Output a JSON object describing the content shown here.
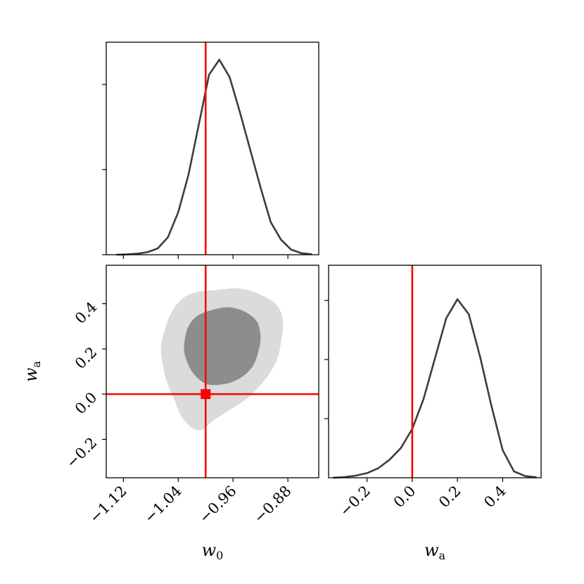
{
  "chart_data": [
    {
      "type": "line",
      "panel": "w0-marginal",
      "xlim": [
        -1.145,
        -0.835
      ],
      "x": [
        -1.13,
        -1.115,
        -1.1,
        -1.085,
        -1.07,
        -1.055,
        -1.04,
        -1.025,
        -1.01,
        -0.995,
        -0.98,
        -0.965,
        -0.95,
        -0.935,
        -0.92,
        -0.905,
        -0.89,
        -0.875,
        -0.86,
        -0.845
      ],
      "y": [
        0.0,
        0.001,
        0.004,
        0.01,
        0.025,
        0.07,
        0.17,
        0.32,
        0.52,
        0.72,
        0.78,
        0.71,
        0.57,
        0.42,
        0.27,
        0.13,
        0.06,
        0.02,
        0.006,
        0.002
      ],
      "ylim": [
        0,
        0.85
      ],
      "ytick_count": 3,
      "xticks": [
        -1.12,
        -1.04,
        -0.96,
        -0.88
      ],
      "xtick_labels": [
        "−1.12",
        "−1.04",
        "−0.96",
        "−0.88"
      ],
      "truth": -1.0,
      "truth_color": "#ff0000",
      "line_color": "#3d3d3d"
    },
    {
      "type": "contour",
      "panel": "w0-wa-joint",
      "xlim": [
        -1.145,
        -0.835
      ],
      "ylim": [
        -0.37,
        0.57
      ],
      "xlabel": "w",
      "xlabel_sub": "0",
      "ylabel": "w",
      "ylabel_sub": "a",
      "yticks": [
        -0.2,
        0.0,
        0.2,
        0.4
      ],
      "ytick_labels": [
        "−0.2",
        "0.0",
        "0.2",
        "0.4"
      ],
      "xticks": [
        -1.12,
        -1.04,
        -0.96,
        -0.88
      ],
      "xtick_labels": [
        "−1.12",
        "−1.04",
        "−0.96",
        "−0.88"
      ],
      "levels": [
        {
          "name": "outer",
          "color": "#dadbdb",
          "points": [
            [
              -0.985,
              0.46
            ],
            [
              -0.96,
              0.468
            ],
            [
              -0.94,
              0.462
            ],
            [
              -0.92,
              0.44
            ],
            [
              -0.9,
              0.405
            ],
            [
              -0.89,
              0.36
            ],
            [
              -0.887,
              0.3
            ],
            [
              -0.89,
              0.23
            ],
            [
              -0.895,
              0.16
            ],
            [
              -0.905,
              0.1
            ],
            [
              -0.92,
              0.04
            ],
            [
              -0.94,
              -0.02
            ],
            [
              -0.965,
              -0.07
            ],
            [
              -0.99,
              -0.12
            ],
            [
              -1.005,
              -0.158
            ],
            [
              -1.02,
              -0.15
            ],
            [
              -1.035,
              -0.1
            ],
            [
              -1.045,
              -0.03
            ],
            [
              -1.055,
              0.04
            ],
            [
              -1.062,
              0.12
            ],
            [
              -1.065,
              0.21
            ],
            [
              -1.058,
              0.3
            ],
            [
              -1.05,
              0.36
            ],
            [
              -1.035,
              0.42
            ],
            [
              -1.015,
              0.45
            ]
          ]
        },
        {
          "name": "inner",
          "color": "#8c8e8e",
          "points": [
            [
              -0.98,
              0.38
            ],
            [
              -0.96,
              0.382
            ],
            [
              -0.94,
              0.36
            ],
            [
              -0.925,
              0.32
            ],
            [
              -0.92,
              0.26
            ],
            [
              -0.922,
              0.2
            ],
            [
              -0.93,
              0.13
            ],
            [
              -0.945,
              0.08
            ],
            [
              -0.965,
              0.05
            ],
            [
              -0.99,
              0.04
            ],
            [
              -1.005,
              0.055
            ],
            [
              -1.02,
              0.1
            ],
            [
              -1.03,
              0.17
            ],
            [
              -1.031,
              0.23
            ],
            [
              -1.025,
              0.3
            ],
            [
              -1.01,
              0.35
            ]
          ]
        }
      ],
      "truth_x": -1.0,
      "truth_y": 0.0,
      "truth_color": "#ff0000"
    },
    {
      "type": "line",
      "panel": "wa-marginal",
      "xlim": [
        -0.37,
        0.57
      ],
      "x": [
        -0.35,
        -0.3,
        -0.25,
        -0.2,
        -0.15,
        -0.1,
        -0.05,
        0.0,
        0.05,
        0.1,
        0.15,
        0.2,
        0.25,
        0.3,
        0.35,
        0.4,
        0.45,
        0.5,
        0.55
      ],
      "y": [
        0.0,
        0.003,
        0.01,
        0.022,
        0.045,
        0.085,
        0.14,
        0.23,
        0.37,
        0.56,
        0.75,
        0.84,
        0.77,
        0.57,
        0.34,
        0.13,
        0.03,
        0.008,
        0.002
      ],
      "ylim": [
        0,
        1.0
      ],
      "ytick_count": 3,
      "xlabel": "w",
      "xlabel_sub": "a",
      "xticks": [
        -0.2,
        0.0,
        0.2,
        0.4
      ],
      "xtick_labels": [
        "−0.2",
        "0.0",
        "0.2",
        "0.4"
      ],
      "truth": 0.0,
      "truth_color": "#ff0000",
      "line_color": "#3d3d3d"
    }
  ]
}
